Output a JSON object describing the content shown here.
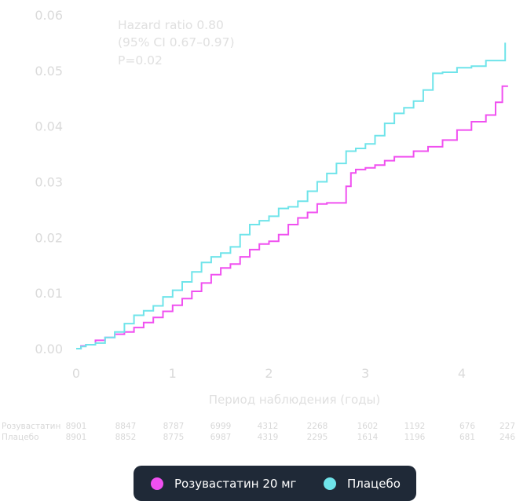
{
  "chart_data": {
    "type": "line",
    "annotations": [
      "Hazard ratio 0.80",
      "(95% CI 0.67–0.97)",
      "P=0.02"
    ],
    "xlabel": "Период наблюдения (годы)",
    "ylabel": "",
    "xlim": [
      0,
      4.5
    ],
    "ylim": [
      0,
      0.06
    ],
    "xticks": [
      0,
      1,
      2,
      3,
      4
    ],
    "xtick_labels": [
      "0",
      "1",
      "2",
      "3",
      "4"
    ],
    "yticks": [
      0,
      0.01,
      0.02,
      0.03,
      0.04,
      0.05,
      0.06
    ],
    "ytick_labels": [
      "0.00",
      "0.01",
      "0.02",
      "0.03",
      "0.04",
      "0.05",
      "0.06"
    ],
    "grid": false,
    "series": [
      {
        "name": "Розувастатин 20 мг",
        "color": "#f050f0",
        "x": [
          0,
          0.05,
          0.1,
          0.2,
          0.3,
          0.4,
          0.5,
          0.6,
          0.7,
          0.8,
          0.9,
          1.0,
          1.1,
          1.2,
          1.3,
          1.4,
          1.5,
          1.6,
          1.7,
          1.8,
          1.9,
          2.0,
          2.1,
          2.2,
          2.3,
          2.4,
          2.5,
          2.6,
          2.7,
          2.8,
          2.85,
          2.9,
          3.0,
          3.1,
          3.2,
          3.3,
          3.5,
          3.65,
          3.8,
          3.95,
          4.1,
          4.25,
          4.35,
          4.42,
          4.48
        ],
        "y": [
          0,
          0.0005,
          0.0007,
          0.0015,
          0.002,
          0.0026,
          0.003,
          0.0038,
          0.0047,
          0.0056,
          0.0067,
          0.0078,
          0.009,
          0.0103,
          0.0118,
          0.0133,
          0.0145,
          0.0152,
          0.0165,
          0.0178,
          0.0188,
          0.0193,
          0.0205,
          0.0223,
          0.0235,
          0.0245,
          0.026,
          0.0262,
          0.0262,
          0.0292,
          0.0316,
          0.0322,
          0.0325,
          0.033,
          0.0338,
          0.0345,
          0.0355,
          0.0363,
          0.0375,
          0.0393,
          0.0408,
          0.042,
          0.0443,
          0.0472,
          0.0472
        ]
      },
      {
        "name": "Плацебо",
        "color": "#6fe4ea",
        "x": [
          0,
          0.05,
          0.1,
          0.2,
          0.3,
          0.4,
          0.5,
          0.6,
          0.7,
          0.8,
          0.9,
          1.0,
          1.1,
          1.2,
          1.3,
          1.4,
          1.5,
          1.6,
          1.7,
          1.8,
          1.9,
          2.0,
          2.1,
          2.2,
          2.3,
          2.4,
          2.5,
          2.6,
          2.7,
          2.8,
          2.9,
          3.0,
          3.1,
          3.2,
          3.3,
          3.4,
          3.5,
          3.6,
          3.7,
          3.8,
          3.95,
          4.1,
          4.25,
          4.35,
          4.45
        ],
        "y": [
          0,
          0.0004,
          0.0007,
          0.001,
          0.002,
          0.003,
          0.0045,
          0.006,
          0.0068,
          0.0077,
          0.0093,
          0.0105,
          0.012,
          0.0138,
          0.0155,
          0.0165,
          0.0172,
          0.0183,
          0.0205,
          0.0223,
          0.023,
          0.0238,
          0.0252,
          0.0255,
          0.0265,
          0.0283,
          0.03,
          0.0315,
          0.0333,
          0.0355,
          0.036,
          0.0368,
          0.0383,
          0.0405,
          0.0423,
          0.0433,
          0.0445,
          0.0465,
          0.0495,
          0.0497,
          0.0505,
          0.0508,
          0.0518,
          0.0518,
          0.055
        ]
      }
    ],
    "legend_position": "bottom-center",
    "risk_table": {
      "rows": [
        {
          "label": "Розувастатин",
          "values": [
            "8901",
            "8847",
            "8787",
            "6999",
            "4312",
            "2268",
            "1602",
            "1192",
            "676",
            "227"
          ]
        },
        {
          "label": "Плацебо",
          "values": [
            "8901",
            "8852",
            "8775",
            "6987",
            "4319",
            "2295",
            "1614",
            "1196",
            "681",
            "246"
          ]
        }
      ]
    }
  }
}
